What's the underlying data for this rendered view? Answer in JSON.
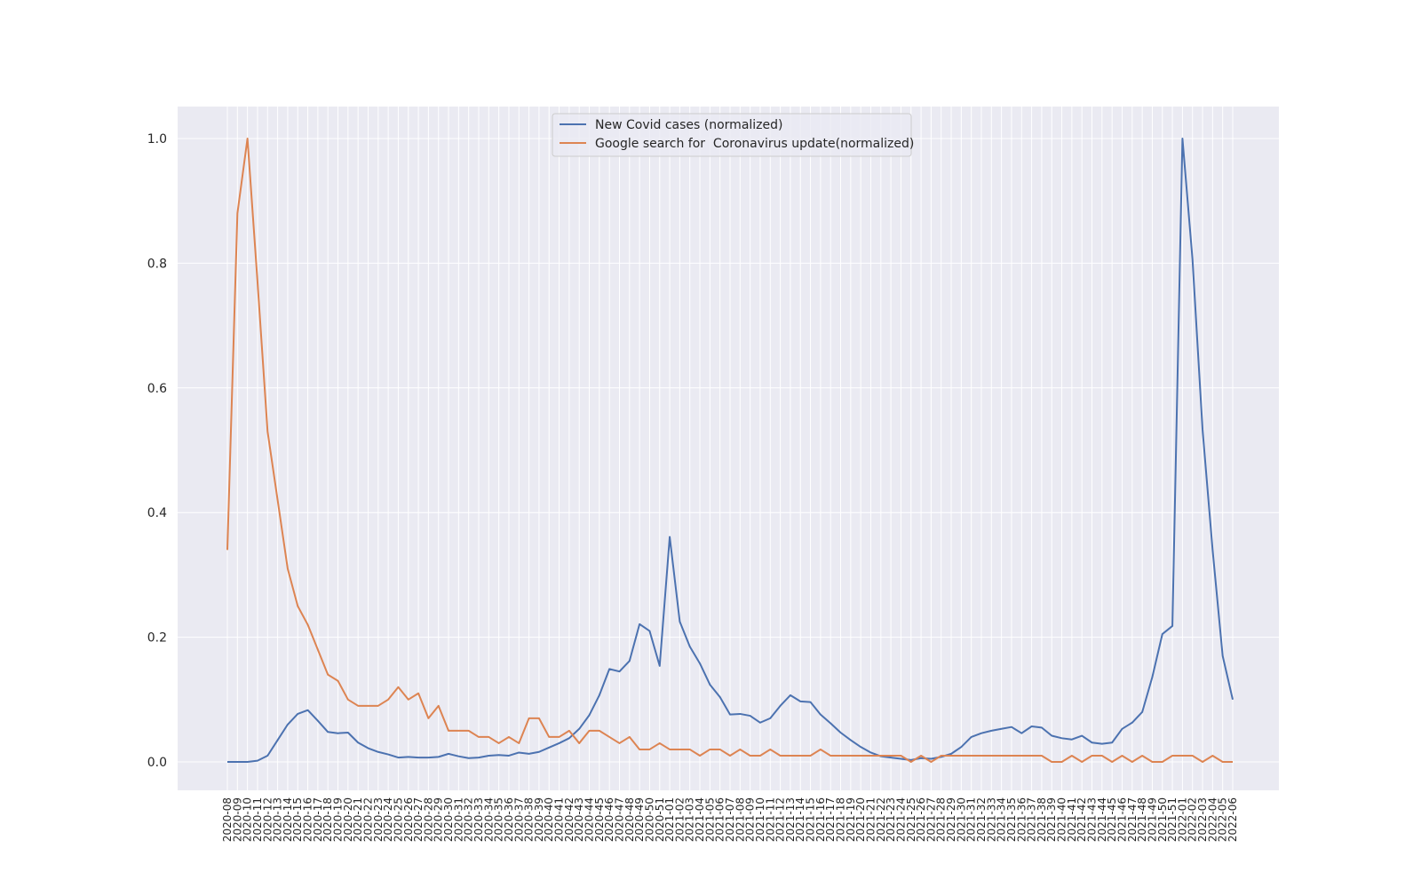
{
  "chart_data": {
    "type": "line",
    "title": "",
    "xlabel": "",
    "ylabel": "",
    "ylim": [
      -0.048,
      1.048
    ],
    "yticks": [
      "0.0",
      "0.2",
      "0.4",
      "0.6",
      "0.8",
      "1.0"
    ],
    "grid": true,
    "legend_position": "top-center",
    "x": [
      "2020-08",
      "2020-09",
      "2020-10",
      "2020-11",
      "2020-12",
      "2020-13",
      "2020-14",
      "2020-15",
      "2020-16",
      "2020-17",
      "2020-18",
      "2020-19",
      "2020-20",
      "2020-21",
      "2020-22",
      "2020-23",
      "2020-24",
      "2020-25",
      "2020-26",
      "2020-27",
      "2020-28",
      "2020-29",
      "2020-30",
      "2020-31",
      "2020-32",
      "2020-33",
      "2020-34",
      "2020-35",
      "2020-36",
      "2020-37",
      "2020-38",
      "2020-39",
      "2020-40",
      "2020-41",
      "2020-42",
      "2020-43",
      "2020-44",
      "2020-45",
      "2020-46",
      "2020-47",
      "2020-48",
      "2020-49",
      "2020-50",
      "2020-51",
      "2021-01",
      "2021-02",
      "2021-03",
      "2021-04",
      "2021-05",
      "2021-06",
      "2021-07",
      "2021-08",
      "2021-09",
      "2021-10",
      "2021-11",
      "2021-12",
      "2021-13",
      "2021-14",
      "2021-15",
      "2021-16",
      "2021-17",
      "2021-18",
      "2021-19",
      "2021-20",
      "2021-21",
      "2021-22",
      "2021-23",
      "2021-24",
      "2021-25",
      "2021-26",
      "2021-27",
      "2021-28",
      "2021-29",
      "2021-30",
      "2021-31",
      "2021-32",
      "2021-33",
      "2021-34",
      "2021-35",
      "2021-36",
      "2021-37",
      "2021-38",
      "2021-39",
      "2021-40",
      "2021-41",
      "2021-42",
      "2021-43",
      "2021-44",
      "2021-45",
      "2021-46",
      "2021-47",
      "2021-48",
      "2021-49",
      "2021-50",
      "2021-51",
      "2022-01",
      "2022-02",
      "2022-03",
      "2022-04",
      "2022-05",
      "2022-06"
    ],
    "series": [
      {
        "name": "New Covid cases (normalized)",
        "color": "#4c72b0",
        "values": [
          0.0,
          0.0,
          0.0,
          0.002,
          0.01,
          0.035,
          0.06,
          0.077,
          0.083,
          0.066,
          0.048,
          0.046,
          0.047,
          0.031,
          0.022,
          0.016,
          0.012,
          0.007,
          0.008,
          0.007,
          0.007,
          0.008,
          0.013,
          0.009,
          0.006,
          0.007,
          0.01,
          0.011,
          0.01,
          0.015,
          0.013,
          0.016,
          0.023,
          0.03,
          0.038,
          0.053,
          0.075,
          0.107,
          0.149,
          0.145,
          0.162,
          0.221,
          0.21,
          0.154,
          0.361,
          0.225,
          0.185,
          0.158,
          0.124,
          0.104,
          0.076,
          0.077,
          0.074,
          0.063,
          0.07,
          0.09,
          0.107,
          0.097,
          0.096,
          0.076,
          0.062,
          0.047,
          0.035,
          0.024,
          0.015,
          0.009,
          0.007,
          0.005,
          0.003,
          0.006,
          0.005,
          0.008,
          0.013,
          0.024,
          0.04,
          0.046,
          0.05,
          0.053,
          0.056,
          0.046,
          0.057,
          0.055,
          0.042,
          0.038,
          0.036,
          0.042,
          0.031,
          0.029,
          0.031,
          0.053,
          0.063,
          0.08,
          0.136,
          0.205,
          0.218,
          1.0,
          0.806,
          0.533,
          0.34,
          0.17,
          0.1
        ]
      },
      {
        "name": "Google search for  Coronavirus update(normalized)",
        "color": "#dd8452",
        "values": [
          0.34,
          0.88,
          1.0,
          0.77,
          0.53,
          0.42,
          0.31,
          0.25,
          0.22,
          0.18,
          0.14,
          0.13,
          0.1,
          0.09,
          0.09,
          0.09,
          0.1,
          0.12,
          0.1,
          0.11,
          0.07,
          0.09,
          0.05,
          0.05,
          0.05,
          0.04,
          0.04,
          0.03,
          0.04,
          0.03,
          0.07,
          0.07,
          0.04,
          0.04,
          0.05,
          0.03,
          0.05,
          0.05,
          0.04,
          0.03,
          0.04,
          0.02,
          0.02,
          0.03,
          0.02,
          0.02,
          0.02,
          0.01,
          0.02,
          0.02,
          0.01,
          0.02,
          0.01,
          0.01,
          0.02,
          0.01,
          0.01,
          0.01,
          0.01,
          0.02,
          0.01,
          0.01,
          0.01,
          0.01,
          0.01,
          0.01,
          0.01,
          0.01,
          0.0,
          0.01,
          0.0,
          0.01,
          0.01,
          0.01,
          0.01,
          0.01,
          0.01,
          0.01,
          0.01,
          0.01,
          0.01,
          0.01,
          0.0,
          0.0,
          0.01,
          0.0,
          0.01,
          0.01,
          0.0,
          0.01,
          0.0,
          0.01,
          0.0,
          0.0,
          0.01,
          0.01,
          0.01,
          0.0,
          0.01,
          0.0,
          0.0
        ]
      }
    ]
  },
  "colors": {
    "plot_background": "#eaeaf2",
    "grid": "#ffffff"
  }
}
